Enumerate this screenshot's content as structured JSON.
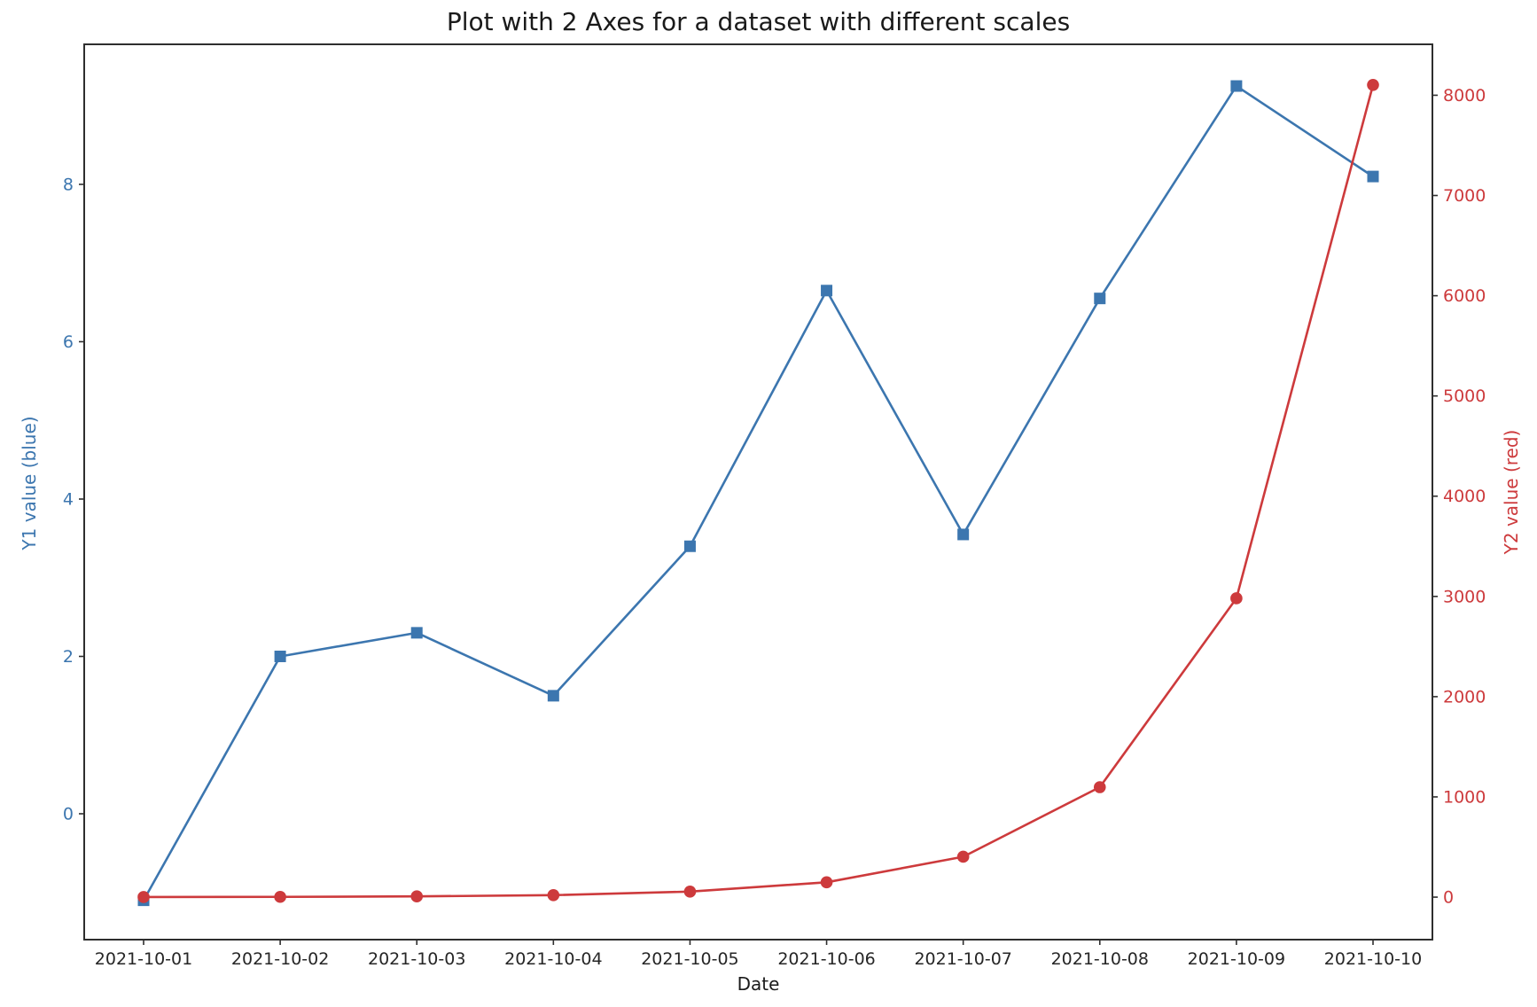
{
  "figure": {
    "title": "Plot with 2 Axes for a dataset with different scales"
  },
  "chart_data": {
    "type": "line",
    "title": "Plot with 2 Axes for a dataset with different scales",
    "xlabel": "Date",
    "x_tick_labels": [
      "2021-10-01",
      "2021-10-02",
      "2021-10-03",
      "2021-10-04",
      "2021-10-05",
      "2021-10-06",
      "2021-10-07",
      "2021-10-08",
      "2021-10-09",
      "2021-10-10"
    ],
    "grid": false,
    "legend": "none",
    "axes": {
      "left": {
        "label": "Y1 value (blue)",
        "color": "#3c76af",
        "ticks": [
          0,
          2,
          4,
          6,
          8
        ],
        "range": [
          -1.6,
          9.78
        ]
      },
      "right": {
        "label": "Y2 value (red)",
        "color": "#cd3a3c",
        "ticks": [
          0,
          1000,
          2000,
          3000,
          4000,
          5000,
          6000,
          7000,
          8000
        ],
        "range": [
          -424,
          8508
        ]
      }
    },
    "series": [
      {
        "name": "Y1",
        "axis": "left",
        "color": "#3c76af",
        "marker": "square",
        "values": [
          -1.1,
          2.0,
          2.3,
          1.5,
          3.4,
          6.65,
          3.55,
          6.55,
          9.25,
          8.1
        ]
      },
      {
        "name": "Y2",
        "axis": "right",
        "color": "#cd3a3c",
        "marker": "circle",
        "values": [
          1,
          2.7,
          7.4,
          20,
          55,
          148,
          403,
          1097,
          2981,
          8103
        ]
      }
    ],
    "tick_text_color_bottom": "#262626",
    "spine_color": "#2e2e2e"
  }
}
